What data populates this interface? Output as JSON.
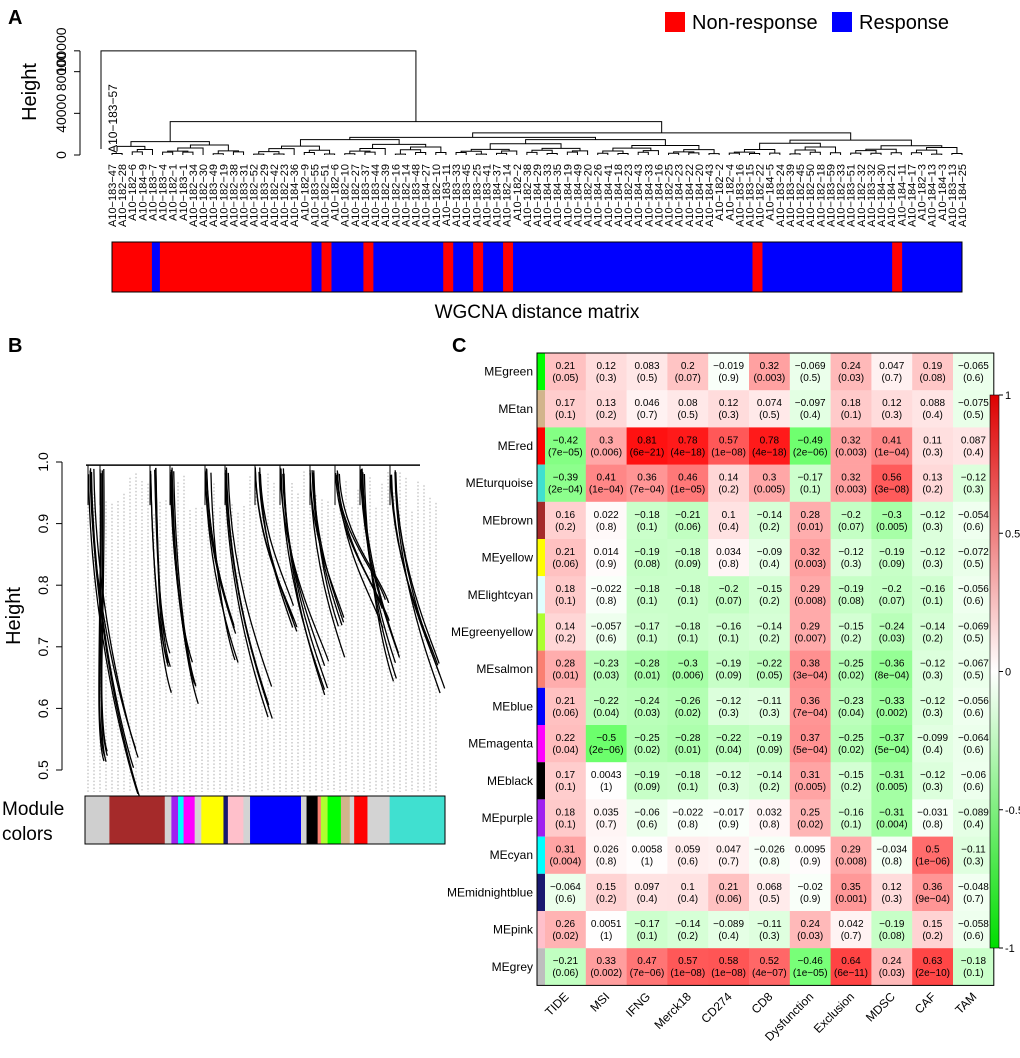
{
  "panels": {
    "a": {
      "letter": "A"
    },
    "b": {
      "letter": "B"
    },
    "c": {
      "letter": "C"
    }
  },
  "chart_data": [
    {
      "type": "dendrogram",
      "panel": "A",
      "ylabel": "Height",
      "yticks": [
        0,
        40000,
        80000,
        100000
      ],
      "ytick_labels": [
        "0",
        "40000",
        "80000",
        "100000"
      ],
      "outlier_label": "A10−183−57",
      "leaves": [
        "A10−183−47",
        "A10−182−28",
        "A10−182−6",
        "A10−184−9",
        "A10−183−7",
        "A10−183−4",
        "A10−182−1",
        "A10−183−1",
        "A10−182−34",
        "A10−182−30",
        "A10−183−49",
        "A10−182−19",
        "A10−182−38",
        "A10−183−31",
        "A10−182−52",
        "A10−183−29",
        "A10−182−42",
        "A10−182−23",
        "A10−184−36",
        "A10−182−9",
        "A10−183−55",
        "A10−182−51",
        "A10−182−6b",
        "A10−182−10",
        "A10−182−27",
        "A10−183−37",
        "A10−183−44",
        "A10−182−39",
        "A10−182−16",
        "A10−182−14",
        "A10−183−48",
        "A10−184−27",
        "A10−182−10b",
        "A10−183−11",
        "A10−183−33",
        "A10−183−45",
        "A10−183−25",
        "A10−183−41",
        "A10−184−37",
        "A10−182−14b",
        "A10−182−2",
        "A10−182−38b",
        "A10−184−29",
        "A10−184−33",
        "A10−184−35",
        "A10−184−19",
        "A10−184−49",
        "A10−182−20",
        "A10−184−26",
        "A10−184−41",
        "A10−184−18",
        "A10−182−23b",
        "A10−184−43",
        "A10−184−33b",
        "A10−184−16",
        "A10−182−25",
        "A10−184−23",
        "A10−184−22",
        "A10−184−20",
        "A10−184−43b",
        "A10−182−2b",
        "A10−182−4",
        "A10−183−16",
        "A10−183−15",
        "A10−182−22",
        "A10−184−5",
        "A10−183−24",
        "A10−183−39",
        "A10−182−45",
        "A10−182−50",
        "A10−182−18",
        "A10−183−59",
        "A10−182−33",
        "A10−183−51",
        "A10−182−32",
        "A10−183−32",
        "A10−184−30",
        "A10−184−21",
        "A10−184−11",
        "A10−184−17",
        "A10−182−3",
        "A10−184−13",
        "A10−184−3",
        "A10−183−13",
        "A10−184−25"
      ],
      "bar_label": "WGCNA distance matrix",
      "bar_segments": [
        {
          "group": "Non-response",
          "width": 40
        },
        {
          "group": "Response",
          "width": 8
        },
        {
          "group": "Non-response",
          "width": 152
        },
        {
          "group": "Response",
          "width": 10
        },
        {
          "group": "Non-response",
          "width": 10
        },
        {
          "group": "Response",
          "width": 32
        },
        {
          "group": "Non-response",
          "width": 10
        },
        {
          "group": "Response",
          "width": 70
        },
        {
          "group": "Non-response",
          "width": 10
        },
        {
          "group": "Response",
          "width": 20
        },
        {
          "group": "Non-response",
          "width": 10
        },
        {
          "group": "Response",
          "width": 20
        },
        {
          "group": "Non-response",
          "width": 10
        },
        {
          "group": "Response",
          "width": 240
        },
        {
          "group": "Non-response",
          "width": 10
        },
        {
          "group": "Response",
          "width": 130
        },
        {
          "group": "Non-response",
          "width": 10
        },
        {
          "group": "Response",
          "width": 60
        }
      ],
      "legend": [
        {
          "name": "Non-response",
          "color": "#ff0000"
        },
        {
          "name": "Response",
          "color": "#0000ff"
        }
      ],
      "legend_placement": "top-right"
    },
    {
      "type": "dendrogram",
      "panel": "B",
      "ylabel": "Height",
      "ylim": [
        0.45,
        1.0
      ],
      "yticks": [
        0.5,
        0.6,
        0.7,
        0.8,
        0.9,
        1.0
      ],
      "ytick_labels": [
        "0.5",
        "0.6",
        "0.7",
        "0.8",
        "0.9",
        "1.0"
      ],
      "colorbar_label": "Module\ncolors",
      "module_colors": [
        {
          "color": "#a52a2a",
          "width": 50
        },
        {
          "color": "#d3d3d3",
          "width": 6
        },
        {
          "color": "#a020f0",
          "width": 6
        },
        {
          "color": "#00ffff",
          "width": 5
        },
        {
          "color": "#ff00ff",
          "width": 10
        },
        {
          "color": "#d3d3d3",
          "width": 6
        },
        {
          "color": "#ffff00",
          "width": 20
        },
        {
          "color": "#191970",
          "width": 4
        },
        {
          "color": "#ffc0cb",
          "width": 14
        },
        {
          "color": "#d3d3d3",
          "width": 6
        },
        {
          "color": "#0000ff",
          "width": 46
        },
        {
          "color": "#d3d3d3",
          "width": 5
        },
        {
          "color": "#000000",
          "width": 10
        },
        {
          "color": "#fa8072",
          "width": 3
        },
        {
          "color": "#adff2f",
          "width": 6
        },
        {
          "color": "#00ff00",
          "width": 12
        },
        {
          "color": "#d2b48c",
          "width": 8
        },
        {
          "color": "#d3d3d3",
          "width": 4
        },
        {
          "color": "#ff0000",
          "width": 12
        },
        {
          "color": "#d3d3d3",
          "width": 20
        },
        {
          "color": "#40e0d0",
          "width": 50
        }
      ]
    },
    {
      "type": "heatmap",
      "panel": "C",
      "columns": [
        "TIDE",
        "MSI",
        "IFNG",
        "Merck18",
        "CD274",
        "CD8",
        "Dysfunction",
        "Exclusion",
        "MDSC",
        "CAF",
        "TAM"
      ],
      "colorscale": {
        "min": -1,
        "max": 1,
        "ticks": [
          1,
          0.5,
          0,
          -0.5,
          -1
        ],
        "tick_labels": [
          "1",
          "0.5",
          "0",
          "-0.5",
          "-1"
        ],
        "low": "#00cc00",
        "mid": "#ffffff",
        "high": "#ff0000"
      },
      "rows": [
        {
          "name": "MEgreen",
          "color": "#00ff00",
          "values": [
            "0.21",
            "0.12",
            "0.083",
            "0.2",
            "−0.019",
            "0.32",
            "−0.069",
            "0.24",
            "0.047",
            "0.19",
            "−0.065"
          ],
          "pvals": [
            "(0.05)",
            "(0.3)",
            "(0.5)",
            "(0.07)",
            "(0.9)",
            "(0.003)",
            "(0.5)",
            "(0.03)",
            "(0.7)",
            "(0.08)",
            "(0.6)"
          ]
        },
        {
          "name": "MEtan",
          "color": "#d2b48c",
          "values": [
            "0.17",
            "0.13",
            "0.046",
            "0.08",
            "0.12",
            "0.074",
            "−0.097",
            "0.18",
            "0.12",
            "0.088",
            "−0.075"
          ],
          "pvals": [
            "(0.1)",
            "(0.2)",
            "(0.7)",
            "(0.5)",
            "(0.3)",
            "(0.5)",
            "(0.4)",
            "(0.1)",
            "(0.3)",
            "(0.4)",
            "(0.5)"
          ]
        },
        {
          "name": "MEred",
          "color": "#ff0000",
          "values": [
            "−0.42",
            "0.3",
            "0.81",
            "0.78",
            "0.57",
            "0.78",
            "−0.49",
            "0.32",
            "0.41",
            "0.11",
            "0.087"
          ],
          "pvals": [
            "(7e−05)",
            "(0.006)",
            "(6e−21)",
            "(4e−18)",
            "(1e−08)",
            "(4e−18)",
            "(2e−06)",
            "(0.003)",
            "(1e−04)",
            "(0.3)",
            "(0.4)"
          ]
        },
        {
          "name": "MEturquoise",
          "color": "#40e0d0",
          "values": [
            "−0.39",
            "0.41",
            "0.36",
            "0.46",
            "0.14",
            "0.3",
            "−0.17",
            "0.32",
            "0.56",
            "0.13",
            "−0.12"
          ],
          "pvals": [
            "(2e−04)",
            "(1e−04)",
            "(7e−04)",
            "(1e−05)",
            "(0.2)",
            "(0.005)",
            "(0.1)",
            "(0.003)",
            "(3e−08)",
            "(0.2)",
            "(0.3)"
          ]
        },
        {
          "name": "MEbrown",
          "color": "#a52a2a",
          "values": [
            "0.16",
            "0.022",
            "−0.18",
            "−0.21",
            "0.1",
            "−0.14",
            "0.28",
            "−0.2",
            "−0.3",
            "−0.12",
            "−0.054"
          ],
          "pvals": [
            "(0.2)",
            "(0.8)",
            "(0.1)",
            "(0.06)",
            "(0.4)",
            "(0.2)",
            "(0.01)",
            "(0.07)",
            "(0.005)",
            "(0.3)",
            "(0.6)"
          ]
        },
        {
          "name": "MEyellow",
          "color": "#ffff00",
          "values": [
            "0.21",
            "0.014",
            "−0.19",
            "−0.18",
            "0.034",
            "−0.09",
            "0.32",
            "−0.12",
            "−0.19",
            "−0.12",
            "−0.072"
          ],
          "pvals": [
            "(0.06)",
            "(0.9)",
            "(0.08)",
            "(0.09)",
            "(0.8)",
            "(0.4)",
            "(0.003)",
            "(0.3)",
            "(0.09)",
            "(0.3)",
            "(0.5)"
          ]
        },
        {
          "name": "MElightcyan",
          "color": "#e0ffff",
          "values": [
            "0.18",
            "−0.022",
            "−0.18",
            "−0.18",
            "−0.2",
            "−0.15",
            "0.29",
            "−0.19",
            "−0.2",
            "−0.16",
            "−0.056"
          ],
          "pvals": [
            "(0.1)",
            "(0.8)",
            "(0.1)",
            "(0.1)",
            "(0.07)",
            "(0.2)",
            "(0.008)",
            "(0.08)",
            "(0.07)",
            "(0.1)",
            "(0.6)"
          ]
        },
        {
          "name": "MEgreenyellow",
          "color": "#adff2f",
          "values": [
            "0.14",
            "−0.057",
            "−0.17",
            "−0.18",
            "−0.16",
            "−0.14",
            "0.29",
            "−0.15",
            "−0.24",
            "−0.14",
            "−0.069"
          ],
          "pvals": [
            "(0.2)",
            "(0.6)",
            "(0.1)",
            "(0.1)",
            "(0.1)",
            "(0.2)",
            "(0.007)",
            "(0.2)",
            "(0.03)",
            "(0.2)",
            "(0.5)"
          ]
        },
        {
          "name": "MEsalmon",
          "color": "#fa8072",
          "values": [
            "0.28",
            "−0.23",
            "−0.28",
            "−0.3",
            "−0.19",
            "−0.22",
            "0.38",
            "−0.25",
            "−0.36",
            "−0.12",
            "−0.067"
          ],
          "pvals": [
            "(0.01)",
            "(0.03)",
            "(0.01)",
            "(0.006)",
            "(0.09)",
            "(0.05)",
            "(3e−04)",
            "(0.02)",
            "(8e−04)",
            "(0.3)",
            "(0.5)"
          ]
        },
        {
          "name": "MEblue",
          "color": "#0000ff",
          "values": [
            "0.21",
            "−0.22",
            "−0.24",
            "−0.26",
            "−0.12",
            "−0.11",
            "0.36",
            "−0.23",
            "−0.33",
            "−0.12",
            "−0.056"
          ],
          "pvals": [
            "(0.06)",
            "(0.04)",
            "(0.03)",
            "(0.02)",
            "(0.3)",
            "(0.3)",
            "(7e−04)",
            "(0.04)",
            "(0.002)",
            "(0.3)",
            "(0.6)"
          ]
        },
        {
          "name": "MEmagenta",
          "color": "#ff00ff",
          "values": [
            "0.22",
            "−0.5",
            "−0.25",
            "−0.28",
            "−0.22",
            "−0.19",
            "0.37",
            "−0.25",
            "−0.37",
            "−0.099",
            "−0.064"
          ],
          "pvals": [
            "(0.04)",
            "(2e−06)",
            "(0.02)",
            "(0.01)",
            "(0.04)",
            "(0.09)",
            "(5e−04)",
            "(0.02)",
            "(5e−04)",
            "(0.4)",
            "(0.6)"
          ]
        },
        {
          "name": "MEblack",
          "color": "#000000",
          "values": [
            "0.17",
            "0.0043",
            "−0.19",
            "−0.18",
            "−0.12",
            "−0.14",
            "0.31",
            "−0.15",
            "−0.31",
            "−0.12",
            "−0.06"
          ],
          "pvals": [
            "(0.1)",
            "(1)",
            "(0.09)",
            "(0.1)",
            "(0.3)",
            "(0.2)",
            "(0.005)",
            "(0.2)",
            "(0.005)",
            "(0.3)",
            "(0.6)"
          ]
        },
        {
          "name": "MEpurple",
          "color": "#a020f0",
          "values": [
            "0.18",
            "0.035",
            "−0.06",
            "−0.022",
            "−0.017",
            "0.032",
            "0.25",
            "−0.16",
            "−0.31",
            "−0.031",
            "−0.089"
          ],
          "pvals": [
            "(0.1)",
            "(0.7)",
            "(0.6)",
            "(0.8)",
            "(0.9)",
            "(0.8)",
            "(0.02)",
            "(0.1)",
            "(0.004)",
            "(0.8)",
            "(0.4)"
          ]
        },
        {
          "name": "MEcyan",
          "color": "#00ffff",
          "values": [
            "0.31",
            "0.026",
            "0.0058",
            "0.059",
            "0.047",
            "−0.026",
            "0.0095",
            "0.29",
            "−0.034",
            "0.5",
            "−0.11"
          ],
          "pvals": [
            "(0.004)",
            "(0.8)",
            "(1)",
            "(0.6)",
            "(0.7)",
            "(0.8)",
            "(0.9)",
            "(0.008)",
            "(0.8)",
            "(1e−06)",
            "(0.3)"
          ]
        },
        {
          "name": "MEmidnightblue",
          "color": "#191970",
          "values": [
            "−0.064",
            "0.15",
            "0.097",
            "0.1",
            "0.21",
            "0.068",
            "−0.02",
            "0.35",
            "0.12",
            "0.36",
            "−0.048"
          ],
          "pvals": [
            "(0.6)",
            "(0.2)",
            "(0.4)",
            "(0.4)",
            "(0.06)",
            "(0.5)",
            "(0.9)",
            "(0.001)",
            "(0.3)",
            "(9e−04)",
            "(0.7)"
          ]
        },
        {
          "name": "MEpink",
          "color": "#ffc0cb",
          "values": [
            "0.26",
            "0.0051",
            "−0.17",
            "−0.14",
            "−0.089",
            "−0.11",
            "0.24",
            "0.042",
            "−0.19",
            "0.15",
            "−0.058"
          ],
          "pvals": [
            "(0.02)",
            "(1)",
            "(0.1)",
            "(0.2)",
            "(0.4)",
            "(0.3)",
            "(0.03)",
            "(0.7)",
            "(0.08)",
            "(0.2)",
            "(0.6)"
          ]
        },
        {
          "name": "MEgrey",
          "color": "#bebebe",
          "values": [
            "−0.21",
            "0.33",
            "0.47",
            "0.57",
            "0.58",
            "0.52",
            "−0.46",
            "0.64",
            "0.24",
            "0.63",
            "−0.18"
          ],
          "pvals": [
            "(0.06)",
            "(0.002)",
            "(7e−06)",
            "(1e−08)",
            "(1e−08)",
            "(4e−07)",
            "(1e−05)",
            "(6e−11)",
            "(0.03)",
            "(2e−10)",
            "(0.1)"
          ]
        }
      ]
    }
  ]
}
